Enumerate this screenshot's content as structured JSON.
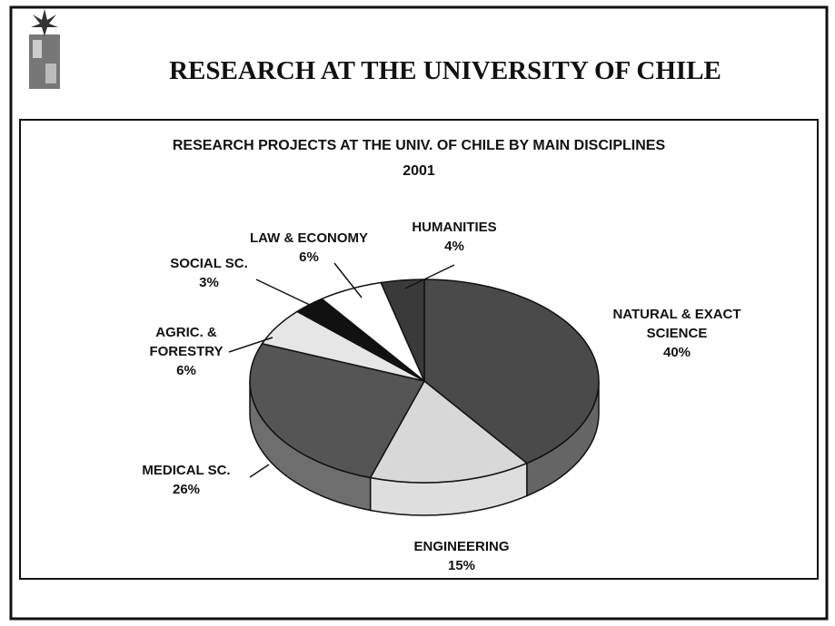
{
  "page_title": "RESEARCH AT THE UNIVERSITY OF CHILE",
  "chart_data": {
    "type": "pie3d",
    "title": "RESEARCH PROJECTS AT THE UNIV. OF CHILE BY MAIN DISCIPLINES",
    "subtitle": "2001",
    "categories": [
      "NATURAL & EXACT SCIENCE",
      "ENGINEERING",
      "MEDICAL SC.",
      "AGRIC. & FORESTRY",
      "SOCIAL SC.",
      "LAW & ECONOMY",
      "HUMANITIES"
    ],
    "values": [
      40,
      15,
      26,
      6,
      3,
      6,
      4
    ],
    "value_labels": [
      "40%",
      "15%",
      "26%",
      "6%",
      "3%",
      "6%",
      "4%"
    ],
    "colors": [
      "#4a4a4a",
      "#d8d8d8",
      "#555555",
      "#e6e6e6",
      "#111111",
      "#ffffff",
      "#3a3a3a"
    ]
  }
}
